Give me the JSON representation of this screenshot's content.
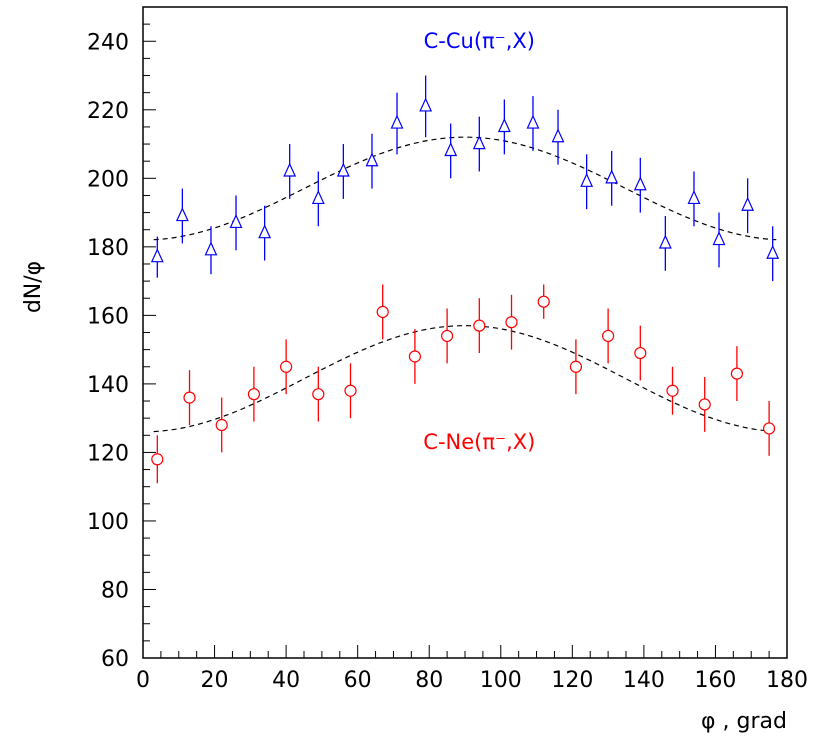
{
  "chart_data": {
    "type": "scatter",
    "xlabel": "φ , grad",
    "ylabel": "dN/φ",
    "xlim": [
      0,
      180
    ],
    "ylim": [
      60,
      250
    ],
    "x_ticks": [
      0,
      20,
      40,
      60,
      80,
      100,
      120,
      140,
      160,
      180
    ],
    "y_ticks": [
      60,
      80,
      100,
      120,
      140,
      160,
      180,
      200,
      220,
      240
    ],
    "grid": false,
    "series": [
      {
        "name": "C-Cu(π⁻,X)",
        "marker": "triangle",
        "color": "#0000ff",
        "label_position": [
          94,
          238
        ],
        "x": [
          4,
          11,
          19,
          26,
          34,
          41,
          49,
          56,
          64,
          71,
          79,
          86,
          94,
          101,
          109,
          116,
          124,
          131,
          139,
          146,
          154,
          161,
          169,
          176
        ],
        "y": [
          177,
          189,
          179,
          187,
          184,
          202,
          194,
          202,
          205,
          216,
          221,
          208,
          210,
          215,
          216,
          212,
          199,
          200,
          198,
          181,
          194,
          182,
          192,
          178
        ],
        "err": [
          6,
          8,
          7,
          8,
          8,
          8,
          8,
          8,
          8,
          9,
          9,
          8,
          8,
          8,
          8,
          8,
          8,
          8,
          8,
          8,
          8,
          8,
          8,
          8
        ]
      },
      {
        "name": "C-Ne(π⁻,X)",
        "marker": "circle",
        "color": "#ff0000",
        "label_position": [
          94,
          121
        ],
        "x": [
          4,
          13,
          22,
          31,
          40,
          49,
          58,
          67,
          76,
          85,
          94,
          103,
          112,
          121,
          130,
          139,
          148,
          157,
          166,
          175
        ],
        "y": [
          118,
          136,
          128,
          137,
          145,
          137,
          138,
          161,
          148,
          154,
          157,
          158,
          164,
          145,
          154,
          149,
          138,
          134,
          143,
          127
        ],
        "err": [
          7,
          8,
          8,
          8,
          8,
          8,
          8,
          8,
          8,
          8,
          8,
          8,
          5,
          8,
          8,
          8,
          7,
          8,
          8,
          8
        ]
      }
    ],
    "fits": [
      {
        "color": "#000000",
        "style": "dashed",
        "base": 182,
        "amp": 30,
        "center": 90
      },
      {
        "color": "#000000",
        "style": "dashed",
        "base": 126,
        "amp": 31,
        "center": 90
      }
    ]
  }
}
